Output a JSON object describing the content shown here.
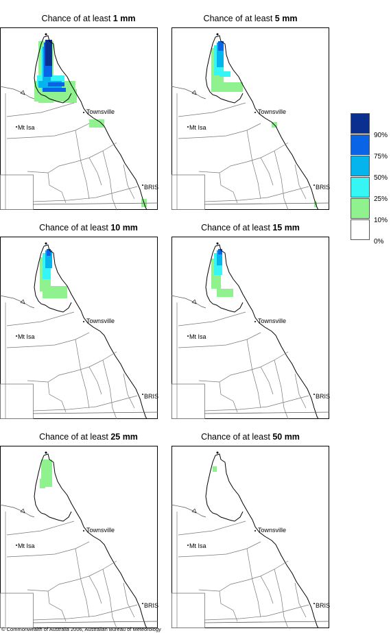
{
  "panels": [
    {
      "id": "p1",
      "title_prefix": "Chance of at least ",
      "title_amount": "1 mm"
    },
    {
      "id": "p2",
      "title_prefix": "Chance of at least ",
      "title_amount": "5 mm"
    },
    {
      "id": "p3",
      "title_prefix": "Chance of at least ",
      "title_amount": "10 mm"
    },
    {
      "id": "p4",
      "title_prefix": "Chance of at least ",
      "title_amount": "15 mm"
    },
    {
      "id": "p5",
      "title_prefix": "Chance of at least ",
      "title_amount": "25 mm"
    },
    {
      "id": "p6",
      "title_prefix": "Chance of at least ",
      "title_amount": "50 mm"
    }
  ],
  "places": {
    "townsville": "Townsville",
    "mt_isa": "Mt Isa",
    "bris": "BRIS"
  },
  "legend": {
    "labels": [
      "90%",
      "75%",
      "50%",
      "25%",
      "10%",
      "0%"
    ],
    "colors": [
      "#0a2f8f",
      "#0a64e6",
      "#05b4ec",
      "#36f5f5",
      "#8ff28f",
      "#ffffff"
    ]
  },
  "copyright": "© Commonwealth of Australia 2006, Australian Bureau of Meteorology"
}
